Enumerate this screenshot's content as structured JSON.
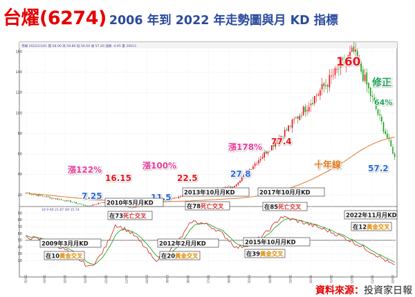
{
  "title": {
    "main": "台燿(6274)",
    "sub": "2006 年到 2022 年走勢圖與月 KD 指標"
  },
  "source": {
    "label": "資料來源：",
    "value": "投資家日報"
  },
  "colors": {
    "up": "#e8141b",
    "down": "#1aa11a",
    "ma": "#e3803a",
    "k_line": "#d23232",
    "d_line": "#1fa51f",
    "label_red": "#e8141b",
    "label_pink": "#e63a9a",
    "label_blue": "#2a6ad8",
    "label_green": "#23a35a",
    "label_ma": "#e07a1c",
    "box_bg": "#ffffff",
    "box_kd_bg": "#fde34d"
  },
  "header_strip": {
    "text": "月線 2022/11/01 開 58.00 高 59.80 低 50.50 收 57.20 漲跌 -4.95 量 20613"
  },
  "kd_strip": {
    "text": "18 9 K9 21.87 D9 15.74"
  },
  "chart_data": [
    {
      "type": "candlestick",
      "title": "",
      "x_ticks": [
        "2006/05/02",
        "2007/03/01",
        "2008/02/01",
        "2009/01/05",
        "2009/12/01",
        "2010/11/01",
        "2011/10/03",
        "2012/09/03",
        "2013/08/01",
        "2014/07/01",
        "2015/06/01",
        "2016/05/03",
        "2017/04/05",
        "2018/03/01",
        "2019/02/01",
        "2020/01/02",
        "2020/12/01",
        "2021/11/01",
        "2022/10/03"
      ],
      "y_ticks": [
        20,
        40,
        60,
        80,
        100,
        120,
        140,
        160
      ],
      "ylim": [
        10,
        168
      ],
      "key_prices": [
        {
          "date": "2010/05",
          "price": 16.15
        },
        {
          "date": "2011/01",
          "price": 7.25
        },
        {
          "date": "2012/03",
          "price": 11.5
        },
        {
          "date": "2013/10",
          "price": 22.5
        },
        {
          "date": "2015/08",
          "price": 27.8
        },
        {
          "date": "2017/10",
          "price": 77.4
        },
        {
          "date": "2021/01",
          "price": 160
        },
        {
          "date": "2022/11",
          "price": 57.2
        }
      ],
      "ten_year_ma": "十年線",
      "annotations": {
        "rise_122": "漲122%",
        "rise_100": "漲100%",
        "rise_178": "漲178%",
        "correction": "修正",
        "correction_pct": "64%",
        "p_1615": "16.15",
        "p_725": "7.25",
        "p_115": "11.5",
        "p_225": "22.5",
        "p_278": "27.8",
        "p_774": "77.4",
        "p_160": "160",
        "p_572": "57.2",
        "kd_2010_05": "2010年5月月KD",
        "kd_2013_10": "2013年10月月KD",
        "kd_2017_10": "2017年10月月KD",
        "kd_2009_03": "2009年3月月KD",
        "kd_2012_02": "2012年2月月KD",
        "kd_2015_10": "2015年10月月KD",
        "kd_2022_11": "2022年11月月KD",
        "cross_73": "在73死亡交叉",
        "cross_78": "在78死亡交叉",
        "cross_85": "在85死亡交叉",
        "cross_10": "在10黃金交叉",
        "cross_20": "在20黃金交叉",
        "cross_39": "在39黃金交叉",
        "cross_12": "在12黃金交叉"
      }
    },
    {
      "type": "line",
      "title": "",
      "y_ticks": [
        20,
        30,
        40,
        50,
        60,
        70,
        80,
        90
      ],
      "ylim": [
        10,
        95
      ],
      "reference_line": 50,
      "series": [
        {
          "name": "K9",
          "values": []
        },
        {
          "name": "D9",
          "values": []
        }
      ],
      "kd_events": [
        {
          "date": "2009/03",
          "value": 10,
          "kind": "golden"
        },
        {
          "date": "2010/05",
          "value": 73,
          "kind": "death"
        },
        {
          "date": "2012/02",
          "value": 20,
          "kind": "golden"
        },
        {
          "date": "2013/10",
          "value": 78,
          "kind": "death"
        },
        {
          "date": "2015/10",
          "value": 39,
          "kind": "golden"
        },
        {
          "date": "2017/10",
          "value": 85,
          "kind": "death"
        },
        {
          "date": "2022/11",
          "value": 12,
          "kind": "golden"
        }
      ]
    }
  ]
}
